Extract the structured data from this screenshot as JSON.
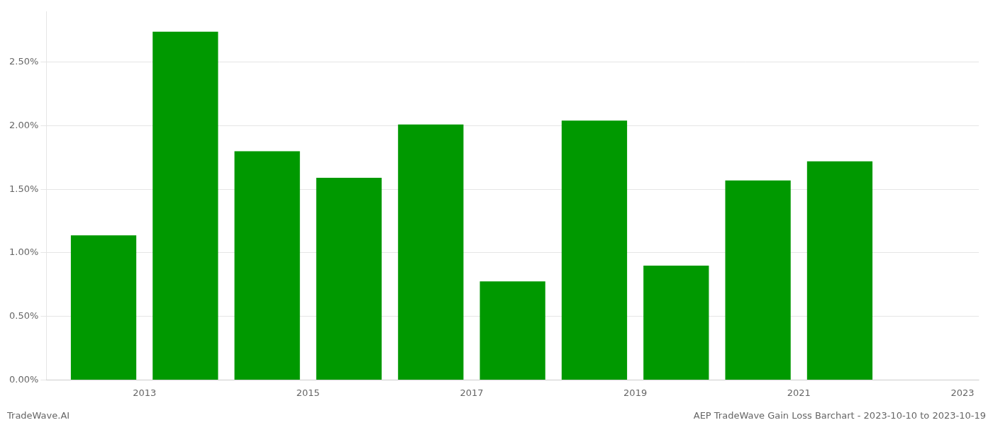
{
  "chart_data": {
    "type": "bar",
    "x": [
      2013,
      2014,
      2015,
      2016,
      2017,
      2018,
      2019,
      2020,
      2021,
      2022
    ],
    "values": [
      0.01138,
      0.0274,
      0.018,
      0.0159,
      0.0201,
      0.00775,
      0.0204,
      0.009,
      0.0157,
      0.0172
    ],
    "color": "#009900",
    "xlim": [
      2012.3,
      2023.7
    ],
    "xticks": [
      {
        "value": 2013.5,
        "label": "2013"
      },
      {
        "value": 2015.5,
        "label": "2015"
      },
      {
        "value": 2017.5,
        "label": "2017"
      },
      {
        "value": 2019.5,
        "label": "2019"
      },
      {
        "value": 2021.5,
        "label": "2021"
      },
      {
        "value": 2023.5,
        "label": "2023"
      }
    ],
    "ylim": [
      0.0,
      0.029
    ],
    "yticks": [
      {
        "value": 0.0,
        "label": "0.00%"
      },
      {
        "value": 0.005,
        "label": "0.50%"
      },
      {
        "value": 0.01,
        "label": "1.00%"
      },
      {
        "value": 0.015,
        "label": "1.50%"
      },
      {
        "value": 0.02,
        "label": "2.00%"
      },
      {
        "value": 0.025,
        "label": "2.50%"
      }
    ],
    "grid": "y",
    "annotations": [
      "TradeWave.AI",
      "AEP TradeWave Gain Loss Barchart - 2023-10-10 to 2023-10-19"
    ]
  }
}
